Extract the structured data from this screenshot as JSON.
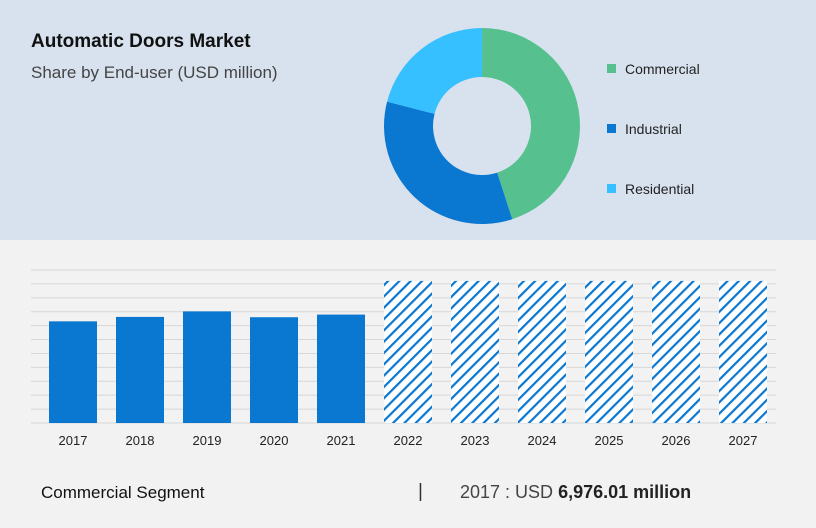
{
  "header": {
    "title": "Automatic Doors Market",
    "subtitle": "Share by End-user (USD million)"
  },
  "footer": {
    "segment": "Commercial Segment",
    "separator": "|",
    "year_prefix": "2017 : USD ",
    "value": "6,976.01 million"
  },
  "chart_data": [
    {
      "type": "pie",
      "variant": "donut",
      "title": "",
      "categories": [
        "Commercial",
        "Industrial",
        "Residential"
      ],
      "values": [
        45,
        34,
        21
      ],
      "colors": [
        "#56c18f",
        "#0a77d0",
        "#36c0ff"
      ],
      "legend": "right"
    },
    {
      "type": "bar",
      "title": "",
      "categories": [
        "2017",
        "2018",
        "2019",
        "2020",
        "2021",
        "2022",
        "2023",
        "2024",
        "2025",
        "2026",
        "2027"
      ],
      "values": [
        6976.01,
        7280,
        7660,
        7260,
        7440,
        9750,
        9750,
        9750,
        9750,
        9750,
        9750
      ],
      "forecast_from": "2022",
      "ylim": [
        0,
        10500
      ],
      "grid": true,
      "colors": {
        "actual": "#0a77d0",
        "forecast": "#0a77d0"
      }
    }
  ]
}
